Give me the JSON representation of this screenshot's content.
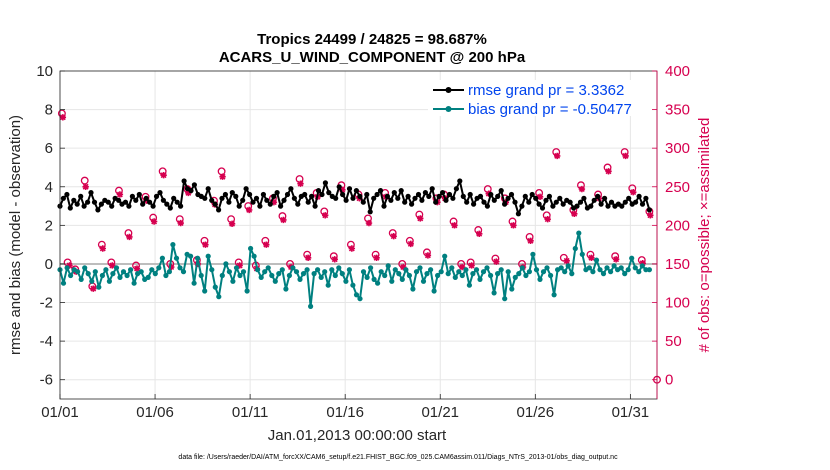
{
  "chart_data": {
    "type": "line",
    "title_line1": "Tropics 24499 / 24825 = 98.687%",
    "title_line2": "ACARS_U_WIND_COMPONENT @ 200 hPa",
    "xlabel": "Jan.01,2013 00:00:00 start",
    "ylabel_left": "rmse and bias (model - observation)",
    "ylabel_right": "# of obs: o=possible; ×=assimilated",
    "xlim": [
      0,
      31.4
    ],
    "ylim_left": [
      -7,
      10
    ],
    "ylim_right": [
      -25,
      400
    ],
    "x_ticks": [
      {
        "pos": 0,
        "label": "01/01"
      },
      {
        "pos": 5,
        "label": "01/06"
      },
      {
        "pos": 10,
        "label": "01/11"
      },
      {
        "pos": 15,
        "label": "01/16"
      },
      {
        "pos": 20,
        "label": "01/21"
      },
      {
        "pos": 25,
        "label": "01/26"
      },
      {
        "pos": 30,
        "label": "01/31"
      }
    ],
    "y_ticks_left": [
      "10",
      "8",
      "6",
      "4",
      "2",
      "0",
      "-2",
      "-4",
      "-6"
    ],
    "y_tick_values_left": [
      10,
      8,
      6,
      4,
      2,
      0,
      -2,
      -4,
      -6
    ],
    "y_ticks_right": [
      "400",
      "350",
      "300",
      "250",
      "200",
      "150",
      "100",
      "50",
      "0"
    ],
    "y_tick_values_right": [
      400,
      350,
      300,
      250,
      200,
      150,
      100,
      50,
      0
    ],
    "grid": true,
    "legend_position": "top-right",
    "series": [
      {
        "name": "rmse",
        "legend_label": "rmse grand pr = 3.3362",
        "color": "#000000",
        "marker": "filled-circle",
        "values": [
          3.0,
          3.4,
          3.6,
          2.9,
          3.3,
          3.1,
          3.5,
          3.0,
          3.2,
          3.7,
          3.2,
          2.8,
          3.1,
          3.3,
          3.2,
          3.0,
          3.4,
          3.3,
          3.1,
          3.2,
          3.0,
          3.5,
          3.3,
          3.6,
          3.1,
          3.4,
          3.2,
          3.0,
          3.5,
          3.7,
          3.3,
          3.1,
          2.9,
          3.4,
          3.2,
          3.0,
          4.3,
          3.9,
          3.8,
          4.1,
          3.6,
          3.5,
          3.4,
          3.9,
          3.3,
          3.1,
          2.8,
          3.4,
          3.6,
          3.2,
          3.7,
          3.5,
          3.0,
          3.3,
          3.9,
          3.6,
          3.2,
          3.4,
          3.0,
          3.6,
          3.3,
          3.1,
          3.5,
          3.7,
          3.0,
          3.3,
          3.6,
          3.9,
          3.4,
          3.1,
          3.5,
          3.6,
          3.2,
          3.5,
          3.0,
          3.8,
          3.6,
          4.2,
          3.7,
          3.5,
          3.4,
          4.0,
          3.6,
          3.3,
          3.9,
          3.4,
          3.8,
          3.5,
          3.2,
          3.6,
          2.7,
          3.4,
          3.6,
          3.8,
          3.0,
          3.5,
          3.3,
          3.7,
          3.4,
          3.8,
          3.2,
          3.5,
          3.1,
          3.4,
          3.6,
          3.3,
          3.7,
          3.5,
          3.9,
          3.2,
          3.5,
          3.7,
          3.3,
          3.6,
          3.4,
          3.9,
          4.3,
          3.5,
          3.2,
          3.6,
          3.1,
          3.4,
          3.5,
          3.2,
          3.0,
          3.6,
          3.3,
          3.5,
          3.8,
          3.1,
          3.4,
          3.6,
          3.2,
          2.6,
          3.0,
          3.5,
          3.2,
          3.6,
          3.4,
          3.1,
          2.9,
          3.3,
          3.5,
          3.0,
          3.2,
          3.4,
          3.1,
          3.3,
          3.2,
          2.9,
          3.0,
          3.2,
          3.4,
          2.9,
          3.0,
          3.3,
          3.5,
          3.1,
          3.4,
          3.0,
          3.2,
          3.0,
          3.1,
          3.0,
          3.2,
          3.4,
          3.1,
          3.2,
          3.5,
          3.1,
          3.4,
          2.8
        ]
      },
      {
        "name": "bias",
        "legend_label": "bias grand pr = -0.50477",
        "color": "#008080",
        "marker": "filled-circle",
        "values": [
          -0.3,
          -1.0,
          -0.2,
          -0.6,
          -0.3,
          -0.4,
          -0.8,
          -0.2,
          -0.5,
          -0.9,
          -0.4,
          -1.2,
          -0.6,
          -0.3,
          -0.9,
          -0.5,
          -0.2,
          -0.7,
          -0.4,
          -0.6,
          -0.3,
          -1.0,
          -0.5,
          -0.4,
          -0.8,
          -0.7,
          -0.3,
          -0.5,
          -0.2,
          0.3,
          -0.6,
          -0.4,
          1.0,
          0.3,
          -0.2,
          -0.4,
          0.5,
          0.4,
          -1.0,
          0.3,
          -0.6,
          -1.4,
          0.4,
          -0.3,
          -1.2,
          -1.7,
          -0.6,
          0.0,
          -0.4,
          -0.9,
          -0.2,
          -0.6,
          -0.4,
          -1.4,
          0.8,
          0.4,
          -0.3,
          -0.7,
          -0.4,
          -0.2,
          -0.6,
          -0.9,
          -0.5,
          -0.3,
          -1.3,
          -0.6,
          -0.2,
          -0.4,
          -0.8,
          -0.5,
          -0.3,
          -2.2,
          -0.5,
          -0.3,
          -0.7,
          -0.4,
          -1.1,
          -0.3,
          -0.6,
          -0.2,
          -0.5,
          -0.9,
          -0.3,
          -1.1,
          -1.6,
          -1.8,
          -0.4,
          -0.7,
          -0.2,
          -0.8,
          -1.0,
          -0.4,
          -0.6,
          -0.1,
          -0.9,
          -0.3,
          -0.5,
          -0.8,
          -0.3,
          -0.6,
          -1.3,
          -0.4,
          -0.2,
          -0.9,
          -0.5,
          -0.3,
          -1.4,
          -0.6,
          -0.4,
          0.4,
          -0.5,
          -0.2,
          -0.7,
          -0.4,
          -0.6,
          -0.3,
          -1.1,
          -0.5,
          -0.3,
          -0.8,
          -0.4,
          -0.2,
          -0.6,
          -1.5,
          -0.5,
          -0.3,
          -1.8,
          -0.4,
          -1.3,
          -0.7,
          -0.5,
          -0.2,
          -0.6,
          -0.4,
          0.5,
          -0.3,
          -0.8,
          -0.4,
          -0.2,
          -0.6,
          -1.6,
          -0.3,
          -0.2,
          -0.4,
          -0.1,
          -0.5,
          0.8,
          1.6,
          0.5,
          -0.3,
          -0.2,
          -0.4,
          0.2,
          -0.3,
          -0.5,
          -0.2,
          -0.4,
          -0.1,
          -0.3,
          -0.2,
          -0.5,
          -0.3,
          0.3,
          -0.2,
          -0.4,
          -0.1,
          -0.3,
          -0.3
        ]
      },
      {
        "name": "obs possible",
        "axis": "right",
        "color": "#d6004f",
        "marker": "open-circle",
        "x": [
          0.1,
          0.4,
          0.8,
          1.3,
          1.7,
          2.2,
          2.7,
          3.1,
          3.6,
          4.0,
          4.5,
          4.9,
          5.4,
          5.8,
          6.3,
          6.7,
          7.2,
          7.6,
          8.1,
          8.5,
          9.0,
          9.4,
          9.9,
          10.3,
          10.8,
          11.2,
          11.7,
          12.1,
          12.6,
          13.0,
          13.5,
          13.9,
          14.4,
          14.8,
          15.3,
          15.7,
          16.2,
          16.6,
          17.1,
          17.5,
          18.0,
          18.4,
          18.9,
          19.3,
          19.8,
          20.2,
          20.7,
          21.1,
          21.6,
          22.0,
          22.5,
          22.9,
          23.4,
          23.8,
          24.3,
          24.7,
          25.2,
          25.6,
          26.1,
          26.5,
          27.0,
          27.4,
          27.9,
          28.3,
          28.8,
          29.2,
          29.7,
          30.1,
          30.6,
          31.0
        ],
        "values": [
          345,
          152,
          143,
          258,
          121,
          175,
          152,
          245,
          190,
          148,
          237,
          210,
          270,
          150,
          208,
          247,
          155,
          180,
          232,
          270,
          208,
          152,
          225,
          148,
          180,
          235,
          212,
          150,
          260,
          162,
          242,
          218,
          160,
          252,
          175,
          240,
          209,
          162,
          242,
          190,
          150,
          180,
          214,
          165,
          235,
          240,
          205,
          150,
          152,
          194,
          247,
          157,
          235,
          205,
          150,
          185,
          242,
          213,
          295,
          158,
          220,
          252,
          162,
          240,
          275,
          160,
          295,
          248,
          155,
          218
        ]
      },
      {
        "name": "obs assimilated",
        "axis": "right",
        "color": "#d6004f",
        "marker": "asterisk",
        "x": [
          0.15,
          0.5,
          0.85,
          1.35,
          1.75,
          2.25,
          2.75,
          3.15,
          3.65,
          4.05,
          4.55,
          4.95,
          5.45,
          5.85,
          6.35,
          6.75,
          7.25,
          7.65,
          8.15,
          8.55,
          9.05,
          9.45,
          9.95,
          10.35,
          10.85,
          11.25,
          11.75,
          12.15,
          12.65,
          13.05,
          13.55,
          13.95,
          14.45,
          14.85,
          15.35,
          15.75,
          16.25,
          16.65,
          17.15,
          17.55,
          18.05,
          18.45,
          18.95,
          19.35,
          19.85,
          20.25,
          20.75,
          21.15,
          21.65,
          22.05,
          22.55,
          22.95,
          23.45,
          23.85,
          24.35,
          24.75,
          25.25,
          25.65,
          26.15,
          26.65,
          27.05,
          27.45,
          27.95,
          28.35,
          28.85,
          29.25,
          29.75,
          30.15,
          30.65,
          31.05
        ],
        "values": [
          340,
          148,
          140,
          250,
          118,
          170,
          148,
          240,
          185,
          144,
          232,
          205,
          265,
          146,
          203,
          242,
          150,
          175,
          227,
          263,
          202,
          148,
          220,
          144,
          175,
          230,
          207,
          146,
          254,
          158,
          237,
          213,
          156,
          246,
          170,
          235,
          203,
          158,
          237,
          186,
          146,
          176,
          209,
          161,
          230,
          235,
          200,
          146,
          148,
          189,
          241,
          153,
          230,
          200,
          146,
          180,
          237,
          208,
          290,
          154,
          215,
          247,
          158,
          235,
          270,
          156,
          290,
          243,
          151,
          213
        ]
      }
    ],
    "endpoint_zero_marker": {
      "x": 31.4,
      "value": 0
    }
  },
  "footer": {
    "data_file": "data file: /Users/raeder/DAI/ATM_forcXX/CAM6_setup/f.e21.FHIST_BGC.f09_025.CAM6assim.011/Diags_NTrS_2013-01/obs_diag_output.nc"
  },
  "colors": {
    "rmse": "#000000",
    "bias": "#008080",
    "obs": "#d6004f",
    "zero_line": "#bdbdbd",
    "grid": "#e6e6e6"
  }
}
